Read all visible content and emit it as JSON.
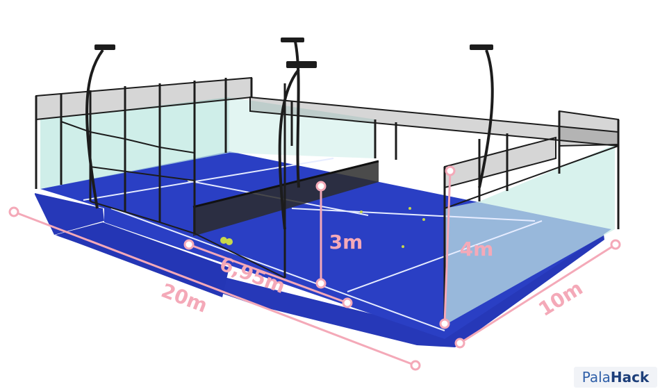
{
  "dimensions": {
    "length": "20m",
    "width": "10m",
    "net_to_service_line": "6,95m",
    "glass_height": "3m",
    "mesh_height": "4m"
  },
  "brand": {
    "part1": "Pala",
    "part2": "Hack"
  },
  "colors": {
    "court": "#2a3fc4",
    "court_apron": "#2638b8",
    "glass": "#bfe8e2",
    "frame": "#1c1c1c",
    "dimension_lines": "#f4a9b8",
    "lines": "#e6ecff"
  }
}
